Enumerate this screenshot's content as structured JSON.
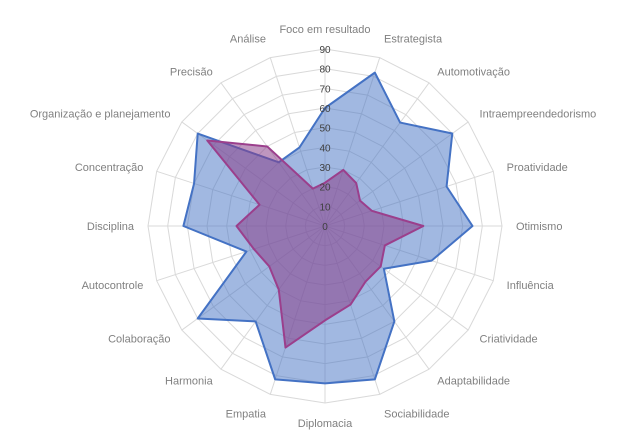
{
  "chart_data": {
    "type": "radar",
    "title": "",
    "categories": [
      "Foco em resultado",
      "Estrategista",
      "Automotivação",
      "Intraempreendedorismo",
      "Proatividade",
      "Otimismo",
      "Influência",
      "Criatividade",
      "Adaptabilidade",
      "Sociabilidade",
      "Diplomacia",
      "Empatia",
      "Harmonia",
      "Colaboração",
      "Autocontrole",
      "Disciplina",
      "Concentração",
      "Organização e planejamento",
      "Precisão",
      "Análise"
    ],
    "ticks": [
      "0",
      "10",
      "20",
      "30",
      "40",
      "50",
      "60",
      "70",
      "80",
      "90"
    ],
    "rlim": [
      0,
      90
    ],
    "grid": true,
    "series": [
      {
        "color": "#4472c4",
        "fill": "#4472c4",
        "values": [
          60,
          82,
          65,
          80,
          65,
          75,
          57,
          37,
          60,
          82,
          80,
          82,
          60,
          80,
          42,
          72,
          70,
          80,
          40,
          42
        ]
      },
      {
        "color": "#9b3f8c",
        "fill": "#8a3f8a",
        "values": [
          22,
          30,
          27,
          22,
          25,
          50,
          32,
          35,
          35,
          42,
          48,
          65,
          40,
          35,
          38,
          45,
          35,
          74,
          50,
          20
        ]
      }
    ]
  }
}
